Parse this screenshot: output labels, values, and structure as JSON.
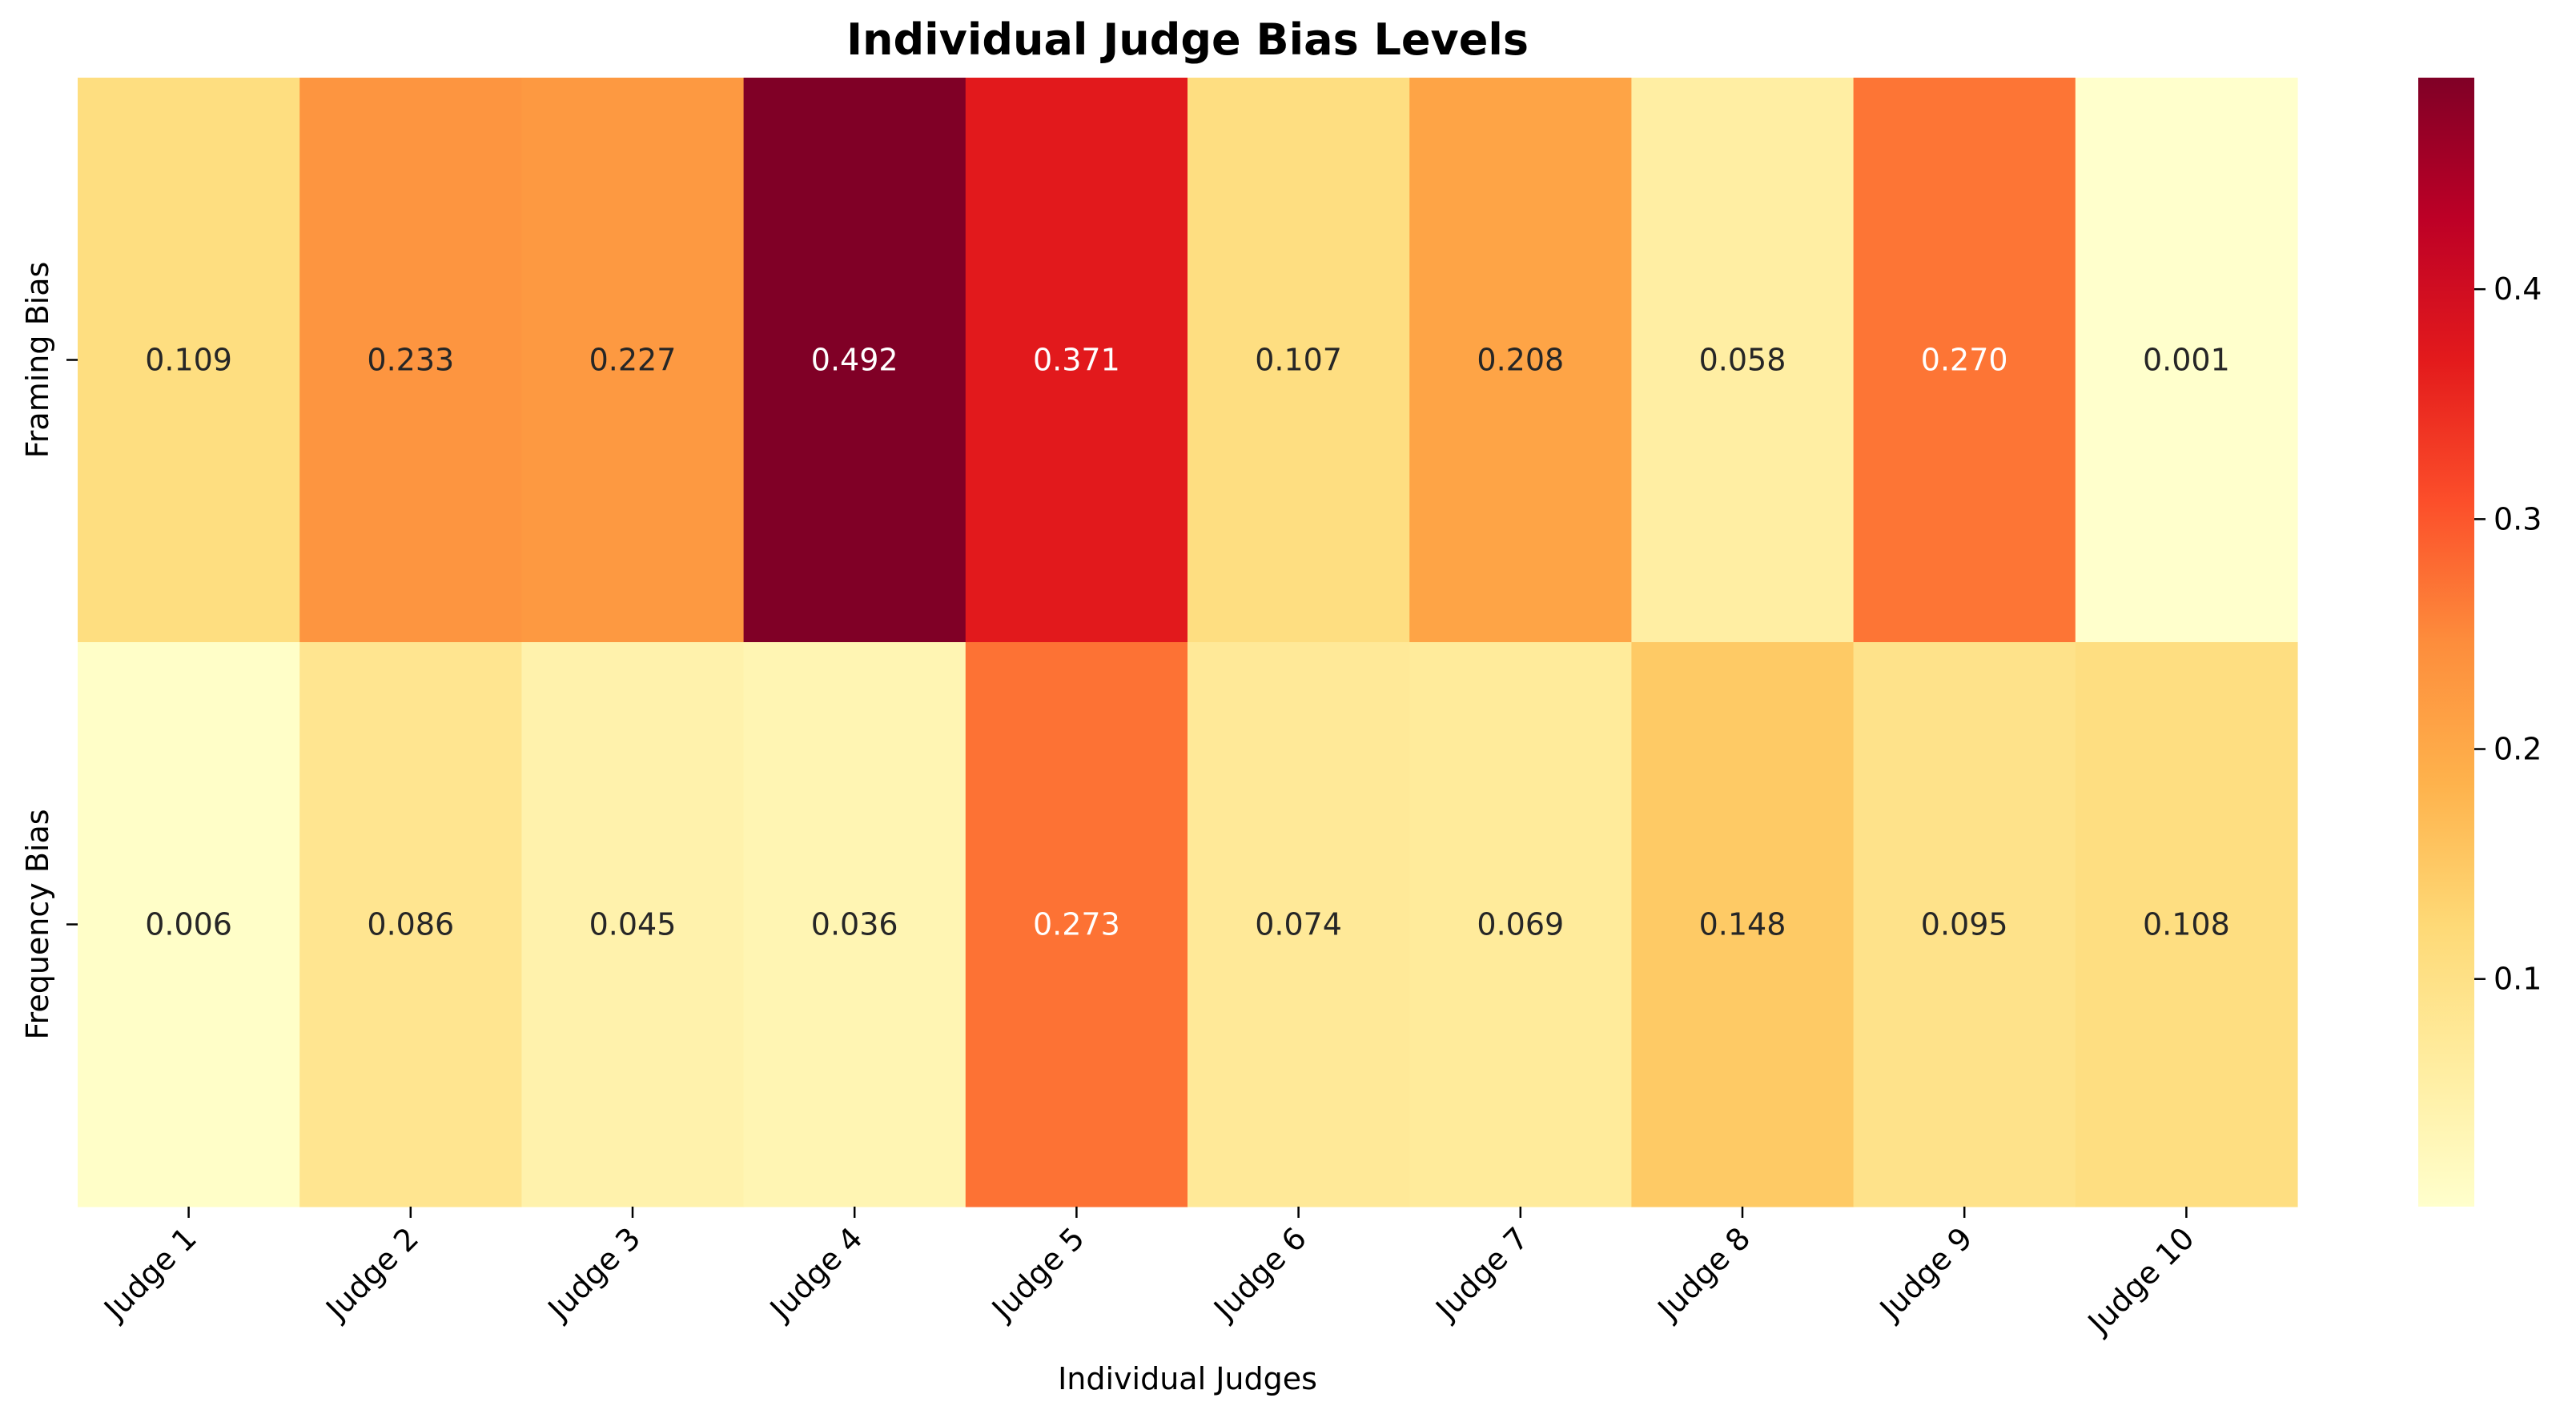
{
  "chart_data": {
    "type": "heatmap",
    "title": "Individual Judge Bias Levels",
    "xlabel": "Individual Judges",
    "ylabel": "",
    "x_categories": [
      "Judge 1",
      "Judge 2",
      "Judge 3",
      "Judge 4",
      "Judge 5",
      "Judge 6",
      "Judge 7",
      "Judge 8",
      "Judge 9",
      "Judge 10"
    ],
    "y_categories": [
      "Framing Bias",
      "Frequency Bias"
    ],
    "values": [
      [
        0.109,
        0.233,
        0.227,
        0.492,
        0.371,
        0.107,
        0.208,
        0.058,
        0.27,
        0.001
      ],
      [
        0.006,
        0.086,
        0.045,
        0.036,
        0.273,
        0.074,
        0.069,
        0.148,
        0.095,
        0.108
      ]
    ],
    "value_labels": [
      [
        "0.109",
        "0.233",
        "0.227",
        "0.492",
        "0.371",
        "0.107",
        "0.208",
        "0.058",
        "0.270",
        "0.001"
      ],
      [
        "0.006",
        "0.086",
        "0.045",
        "0.036",
        "0.273",
        "0.074",
        "0.069",
        "0.148",
        "0.095",
        "0.108"
      ]
    ],
    "colormap": "YlOrRd",
    "color_range": [
      0.001,
      0.492
    ],
    "colorbar_ticks": [
      0.1,
      0.2,
      0.3,
      0.4
    ],
    "colorbar_tick_labels": [
      "0.1",
      "0.2",
      "0.3",
      "0.4"
    ],
    "x_tick_rotation_deg": 45
  },
  "colors": {
    "colormap_stops": [
      "#ffffcc",
      "#ffeda0",
      "#fed976",
      "#feb24c",
      "#fd8d3c",
      "#fc4e2a",
      "#e31a1c",
      "#bd0026",
      "#800026"
    ],
    "text_dark": "#262626",
    "text_light": "#ffffff"
  }
}
